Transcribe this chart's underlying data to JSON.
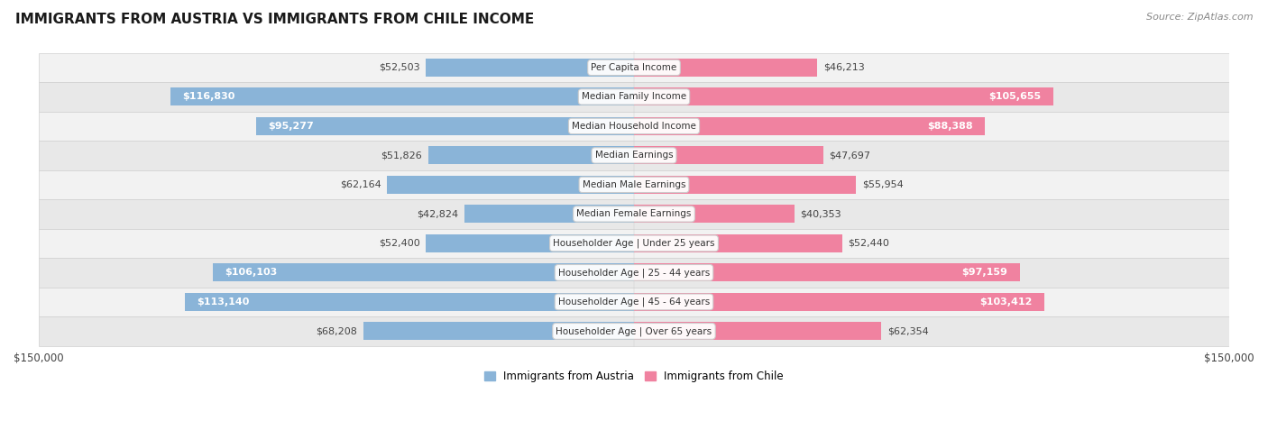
{
  "title": "IMMIGRANTS FROM AUSTRIA VS IMMIGRANTS FROM CHILE INCOME",
  "source": "Source: ZipAtlas.com",
  "categories": [
    "Per Capita Income",
    "Median Family Income",
    "Median Household Income",
    "Median Earnings",
    "Median Male Earnings",
    "Median Female Earnings",
    "Householder Age | Under 25 years",
    "Householder Age | 25 - 44 years",
    "Householder Age | 45 - 64 years",
    "Householder Age | Over 65 years"
  ],
  "austria_values": [
    52503,
    116830,
    95277,
    51826,
    62164,
    42824,
    52400,
    106103,
    113140,
    68208
  ],
  "chile_values": [
    46213,
    105655,
    88388,
    47697,
    55954,
    40353,
    52440,
    97159,
    103412,
    62354
  ],
  "austria_color": "#8ab4d8",
  "chile_color": "#f082a0",
  "row_colors": [
    "#f2f2f2",
    "#e8e8e8"
  ],
  "large_threshold": 70000,
  "bar_height": 0.62,
  "xlim": 150000,
  "legend_austria": "Immigrants from Austria",
  "legend_chile": "Immigrants from Chile",
  "label_fontsize": 8,
  "cat_fontsize": 7.5
}
